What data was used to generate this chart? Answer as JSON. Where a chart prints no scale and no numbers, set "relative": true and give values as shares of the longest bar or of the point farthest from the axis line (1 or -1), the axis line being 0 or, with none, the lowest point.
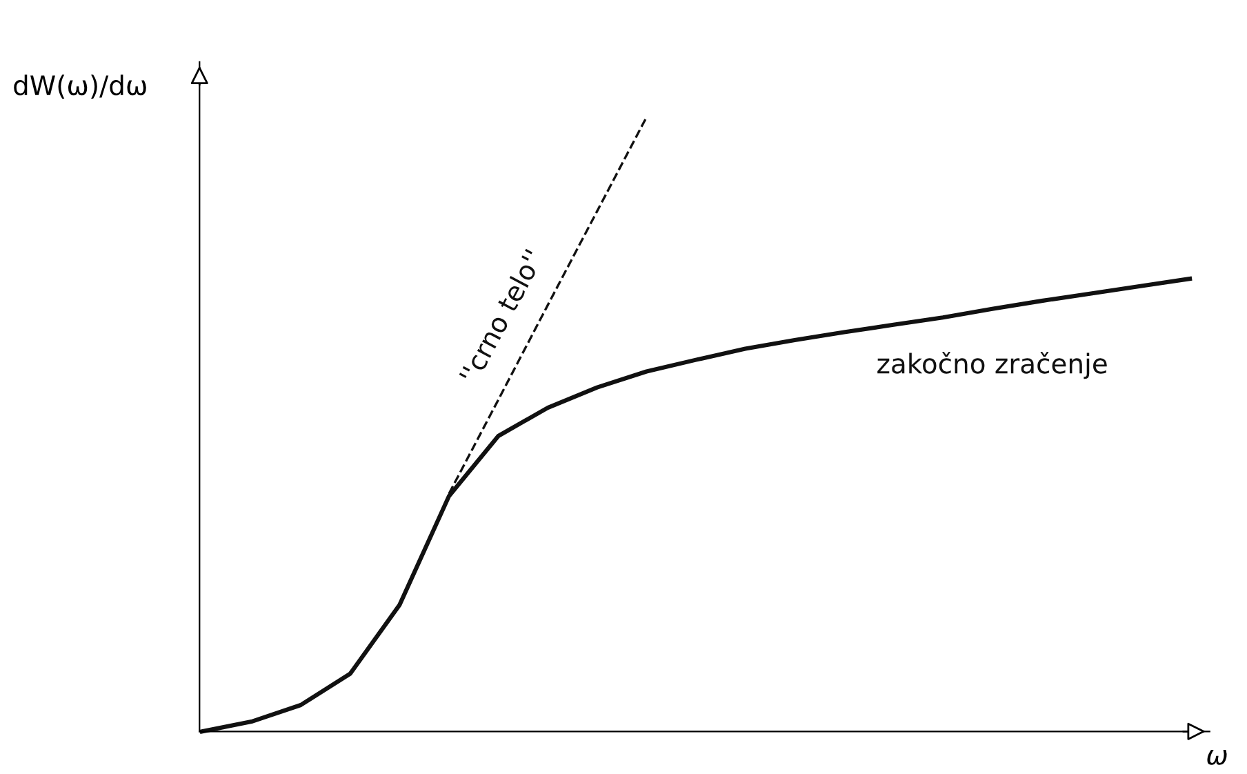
{
  "chart_data": {
    "type": "line",
    "relative": true,
    "ylabel": "dW(ω)/dω",
    "xlabel": "ω",
    "categories": [
      null,
      null,
      null,
      null,
      null,
      null,
      null,
      null,
      null,
      null,
      null,
      null,
      null,
      null,
      null,
      null,
      null,
      null,
      null,
      null,
      null
    ],
    "series": [
      {
        "name": "zakočno zračenje",
        "color": "#111111",
        "line_style": "solid",
        "values": [
          0,
          0.016,
          0.043,
          0.094,
          0.206,
          0.383,
          0.481,
          0.527,
          0.56,
          0.586,
          0.605,
          0.623,
          0.637,
          0.65,
          0.662,
          0.674,
          0.688,
          0.701,
          0.713,
          0.725,
          0.737
        ]
      },
      {
        "name": "''crno telo''",
        "color": "#111111",
        "line_style": "dashed",
        "values": [
          null,
          null,
          null,
          null,
          null,
          0.387,
          0.54,
          0.694,
          0.847,
          1.0,
          null,
          null,
          null,
          null,
          null,
          null,
          null,
          null,
          null,
          null,
          null
        ]
      }
    ],
    "marker": "none",
    "legend": false
  }
}
